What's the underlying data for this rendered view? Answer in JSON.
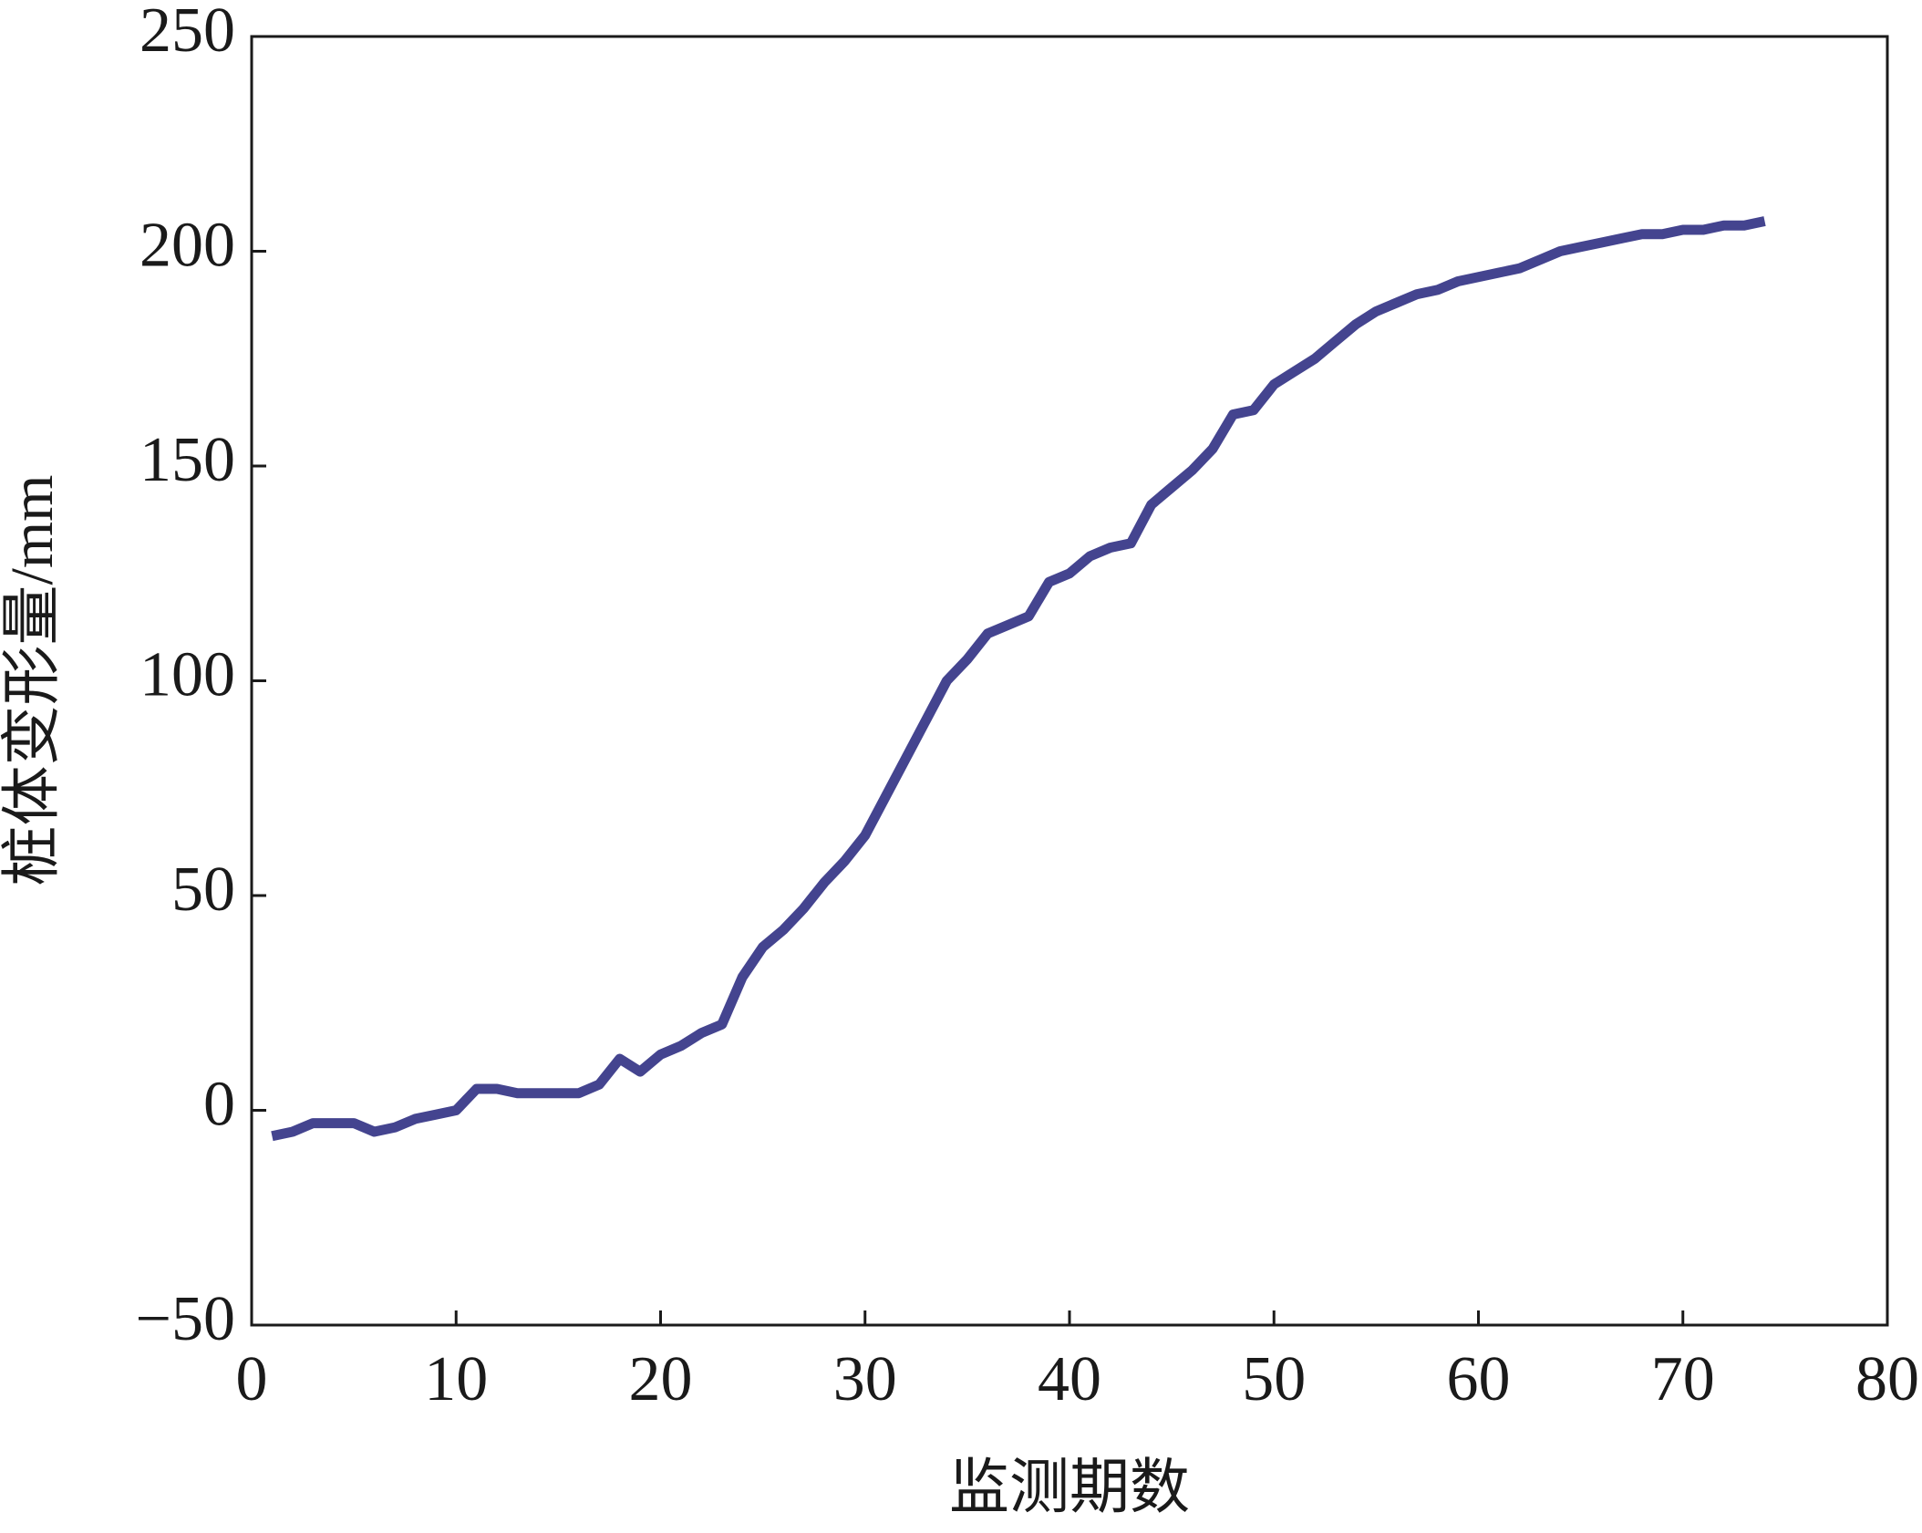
{
  "chart_data": {
    "type": "line",
    "x_label": "监测期数",
    "y_label": "桩体变形量/mm",
    "x": [
      1,
      2,
      3,
      4,
      5,
      6,
      7,
      8,
      9,
      10,
      11,
      12,
      13,
      14,
      15,
      16,
      17,
      18,
      19,
      20,
      21,
      22,
      23,
      24,
      25,
      26,
      27,
      28,
      29,
      30,
      31,
      32,
      33,
      34,
      35,
      36,
      37,
      38,
      39,
      40,
      41,
      42,
      43,
      44,
      45,
      46,
      47,
      48,
      49,
      50,
      51,
      52,
      53,
      54,
      55,
      56,
      57,
      58,
      59,
      60,
      61,
      62,
      63,
      64,
      65,
      66,
      67,
      68,
      69,
      70,
      71,
      72,
      73,
      74
    ],
    "series": [
      {
        "color": "#44448f",
        "values": [
          -6,
          -5,
          -3,
          -3,
          -3,
          -5,
          -4,
          -2,
          -1,
          0,
          5,
          5,
          4,
          4,
          4,
          4,
          6,
          12,
          9,
          13,
          15,
          18,
          20,
          31,
          38,
          42,
          47,
          53,
          58,
          64,
          73,
          82,
          91,
          100,
          105,
          111,
          113,
          115,
          123,
          125,
          129,
          131,
          132,
          141,
          145,
          149,
          154,
          162,
          163,
          169,
          172,
          175,
          179,
          183,
          186,
          188,
          190,
          191,
          193,
          194,
          195,
          196,
          198,
          200,
          201,
          202,
          203,
          204,
          204,
          205,
          205,
          206,
          206,
          207
        ]
      }
    ],
    "xlim": [
      0,
      80
    ],
    "xticks": [
      0,
      10,
      20,
      30,
      40,
      50,
      60,
      70,
      80
    ],
    "ylim": [
      -50,
      250
    ],
    "yticks": [
      {
        "value": -50,
        "label": "−50"
      },
      0,
      50,
      100,
      150,
      200,
      250
    ]
  }
}
